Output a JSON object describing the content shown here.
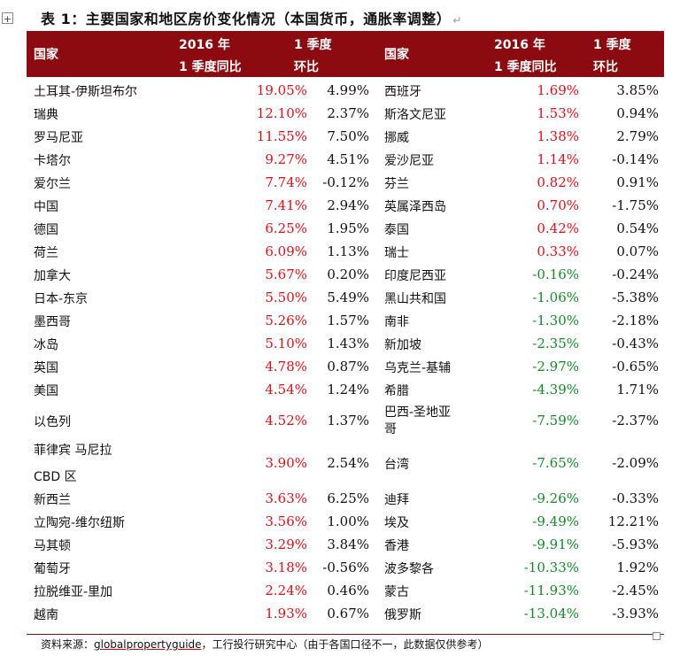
{
  "title": "表 1：主要国家和地区房价变化情况（本国货币，通胀率调整）",
  "header": {
    "country": "国家",
    "yoy_line1": "2016 年",
    "yoy_line2": "1 季度同比",
    "qoq_line1": "1 季度",
    "qoq_line2": "环比"
  },
  "left_rows": [
    {
      "country": "土耳其-伊斯坦布尔",
      "yoy": "19.05%",
      "qoq": "4.99%"
    },
    {
      "country": "瑞典",
      "yoy": "12.10%",
      "qoq": "2.37%"
    },
    {
      "country": "罗马尼亚",
      "yoy": "11.55%",
      "qoq": "7.50%"
    },
    {
      "country": "卡塔尔",
      "yoy": "9.27%",
      "qoq": "4.51%"
    },
    {
      "country": "爱尔兰",
      "yoy": "7.74%",
      "qoq": "-0.12%"
    },
    {
      "country": "中国",
      "yoy": "7.41%",
      "qoq": "2.94%"
    },
    {
      "country": "德国",
      "yoy": "6.25%",
      "qoq": "1.95%"
    },
    {
      "country": "荷兰",
      "yoy": "6.09%",
      "qoq": "1.13%"
    },
    {
      "country": "加拿大",
      "yoy": "5.67%",
      "qoq": "0.20%"
    },
    {
      "country": "日本-东京",
      "yoy": "5.50%",
      "qoq": "5.49%"
    },
    {
      "country": "墨西哥",
      "yoy": "5.26%",
      "qoq": "1.57%"
    },
    {
      "country": "冰岛",
      "yoy": "5.10%",
      "qoq": "1.43%"
    },
    {
      "country": "英国",
      "yoy": "4.78%",
      "qoq": "0.87%"
    },
    {
      "country": "美国",
      "yoy": "4.54%",
      "qoq": "1.24%"
    },
    {
      "country": "以色列",
      "yoy": "4.52%",
      "qoq": "1.37%"
    },
    {
      "country": "菲律宾 马尼拉",
      "country2": "CBD 区",
      "yoy": "3.90%",
      "qoq": "2.54%"
    },
    {
      "country": "新西兰",
      "yoy": "3.63%",
      "qoq": "6.25%"
    },
    {
      "country": "立陶宛-维尔纽斯",
      "yoy": "3.56%",
      "qoq": "1.00%"
    },
    {
      "country": "马其顿",
      "yoy": "3.29%",
      "qoq": "3.84%"
    },
    {
      "country": "葡萄牙",
      "yoy": "3.18%",
      "qoq": "-0.56%"
    },
    {
      "country": "拉脱维亚-里加",
      "yoy": "2.24%",
      "qoq": "0.46%"
    },
    {
      "country": "越南",
      "yoy": "1.93%",
      "qoq": "0.67%"
    }
  ],
  "right_rows": [
    {
      "country": "西班牙",
      "yoy": "1.69%",
      "qoq": "3.85%"
    },
    {
      "country": "斯洛文尼亚",
      "yoy": "1.53%",
      "qoq": "0.94%"
    },
    {
      "country": "挪威",
      "yoy": "1.38%",
      "qoq": "2.79%"
    },
    {
      "country": "爱沙尼亚",
      "yoy": "1.14%",
      "qoq": "-0.14%"
    },
    {
      "country": "芬兰",
      "yoy": "0.82%",
      "qoq": "0.91%"
    },
    {
      "country": "英属泽西岛",
      "yoy": "0.70%",
      "qoq": "-1.75%"
    },
    {
      "country": "泰国",
      "yoy": "0.42%",
      "qoq": "0.54%"
    },
    {
      "country": "瑞士",
      "yoy": "0.33%",
      "qoq": "0.07%"
    },
    {
      "country": "印度尼西亚",
      "yoy": "-0.16%",
      "qoq": "-0.24%"
    },
    {
      "country": "黑山共和国",
      "yoy": "-1.06%",
      "qoq": "-5.38%"
    },
    {
      "country": "南非",
      "yoy": "-1.30%",
      "qoq": "-2.18%"
    },
    {
      "country": "新加坡",
      "yoy": "-2.35%",
      "qoq": "-0.43%"
    },
    {
      "country": "乌克兰-基辅",
      "yoy": "-2.97%",
      "qoq": "-0.65%"
    },
    {
      "country": "希腊",
      "yoy": "-4.39%",
      "qoq": "1.71%"
    },
    {
      "country": "巴西-圣地亚",
      "country2": "哥",
      "yoy": "-7.59%",
      "qoq": "-2.37%"
    },
    {
      "country": "台湾",
      "yoy": "-7.65%",
      "qoq": "-2.09%"
    },
    {
      "country": "迪拜",
      "yoy": "-9.26%",
      "qoq": "-0.33%"
    },
    {
      "country": "埃及",
      "yoy": "-9.49%",
      "qoq": "12.21%"
    },
    {
      "country": "香港",
      "yoy": "-9.91%",
      "qoq": "-5.93%"
    },
    {
      "country": "波多黎各",
      "yoy": "-10.33%",
      "qoq": "1.92%"
    },
    {
      "country": "蒙古",
      "yoy": "-11.93%",
      "qoq": "-2.45%"
    },
    {
      "country": "俄罗斯",
      "yoy": "-13.04%",
      "qoq": "-3.93%"
    }
  ],
  "source": {
    "prefix": "资料来源：",
    "url": "globalpropertyguide",
    "suffix": "，工行投行研究中心（由于各国口径不一，此数据仅供参考）"
  },
  "colors": {
    "header_bg": "#8c0b10",
    "positive": "#e0101a",
    "negative": "#148a2a"
  },
  "icons": {
    "move_handle": "move-handle-icon",
    "paragraph_mark": "return-mark-icon"
  }
}
